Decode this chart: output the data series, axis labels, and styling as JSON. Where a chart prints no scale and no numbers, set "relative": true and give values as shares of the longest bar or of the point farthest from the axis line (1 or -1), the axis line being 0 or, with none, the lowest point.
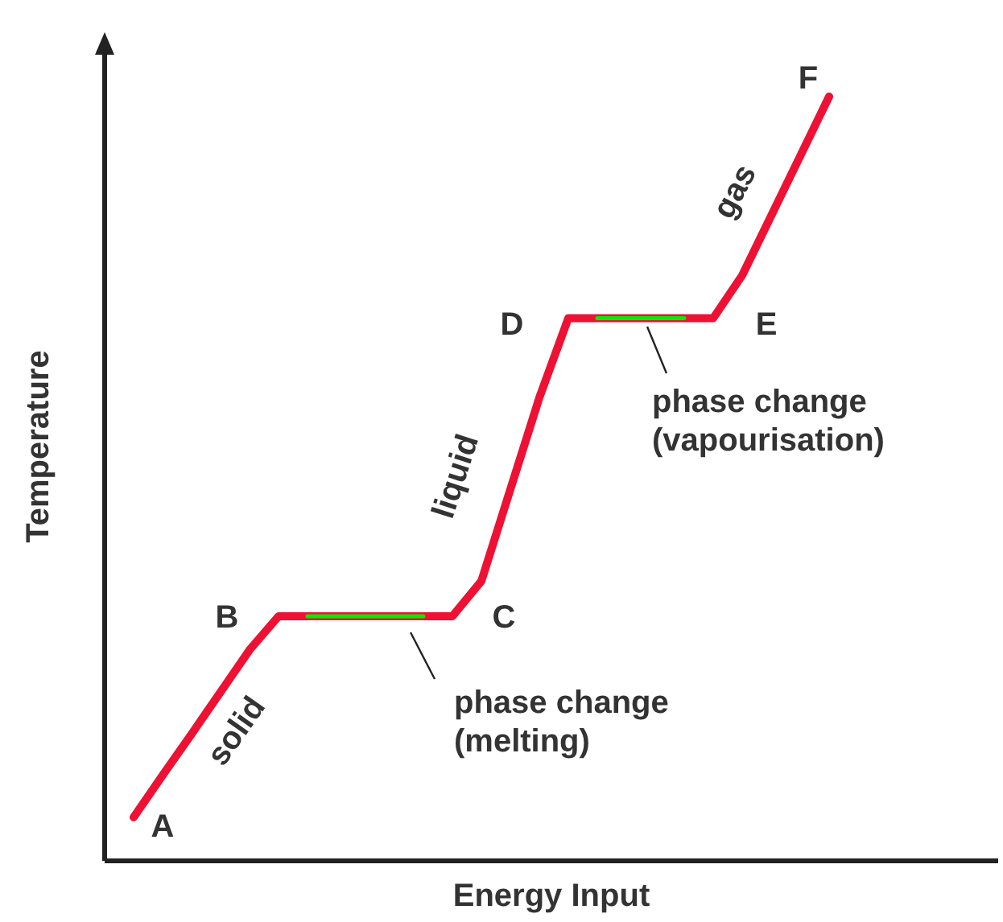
{
  "chart_data": {
    "type": "line",
    "relative": true,
    "xlabel": "Energy Input",
    "ylabel": "Temperature",
    "categories": [
      null,
      null,
      null,
      null,
      null,
      null,
      null,
      null,
      null,
      null,
      null,
      null,
      null,
      null,
      null,
      null,
      null,
      null,
      null,
      null,
      null,
      null,
      null,
      null,
      null
    ],
    "series": [
      {
        "color": "#ee1133",
        "values": [
          0.057,
          0.112,
          0.166,
          0.221,
          0.276,
          0.32,
          0.32,
          0.32,
          0.32,
          0.32,
          0.32,
          0.32,
          0.366,
          0.486,
          0.606,
          0.71,
          0.71,
          0.71,
          0.71,
          0.71,
          0.71,
          0.766,
          0.844,
          0.922,
          1.0
        ]
      },
      {
        "color": "#00ee00",
        "values": [
          null,
          null,
          null,
          null,
          null,
          null,
          0.32,
          0.32,
          0.32,
          0.32,
          0.32,
          null,
          null,
          null,
          null,
          null,
          0.71,
          0.71,
          0.71,
          0.71,
          null,
          null,
          null,
          null,
          null
        ]
      }
    ],
    "annotations": [
      "A",
      "B",
      "C",
      "D",
      "E",
      "F",
      "solid",
      "liquid",
      "gas",
      "phase change\n(melting)",
      "phase change\n(vapourisation)"
    ],
    "grid": false,
    "legend": false,
    "marker": "none",
    "line_style": "solid"
  }
}
